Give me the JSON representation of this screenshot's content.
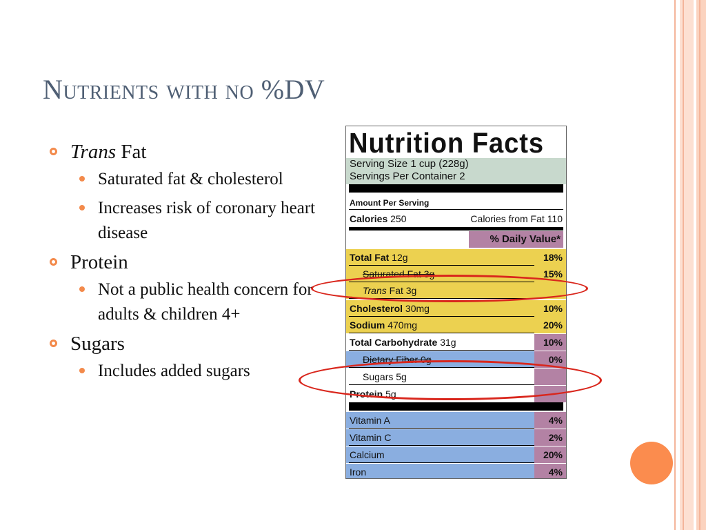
{
  "slide": {
    "title": "Nutrients with no %DV",
    "bullets": [
      {
        "label_italic": "Trans",
        "label_rest": " Fat",
        "subs": [
          "Saturated fat & cholesterol",
          "Increases risk of coronary heart disease"
        ]
      },
      {
        "label": "Protein",
        "subs": [
          "Not a public health concern for adults & children 4+"
        ]
      },
      {
        "label": "Sugars",
        "subs": [
          "Includes added sugars"
        ]
      }
    ]
  },
  "label": {
    "title": "Nutrition Facts",
    "serving_size": "Serving Size 1 cup (228g)",
    "servings_per_container": "Servings Per Container  2",
    "amount_per_serving": "Amount Per Serving",
    "calories_label": "Calories",
    "calories_value": " 250",
    "calories_from_fat": "Calories from Fat 110",
    "daily_value_header": "% Daily Value*",
    "rows": [
      {
        "name_bold": "Total Fat",
        "name_rest": " 12g",
        "pct": "18%"
      },
      {
        "name": "Saturated Fat 3g",
        "pct": "15%"
      },
      {
        "name_italic": "Trans",
        "name_rest": " Fat 3g",
        "pct": ""
      },
      {
        "name_bold": "Cholesterol",
        "name_rest": " 30mg",
        "pct": "10%"
      },
      {
        "name_bold": "Sodium",
        "name_rest": " 470mg",
        "pct": "20%"
      },
      {
        "name_bold": "Total Carbohydrate",
        "name_rest": " 31g",
        "pct": "10%"
      },
      {
        "name": "Dietary Fiber 0g",
        "pct": "0%"
      },
      {
        "name": "Sugars 5g",
        "pct": ""
      },
      {
        "name_bold": "Protein",
        "name_rest": " 5g",
        "pct": ""
      },
      {
        "name": "Vitamin A",
        "pct": "4%"
      },
      {
        "name": "Vitamin C",
        "pct": "2%"
      },
      {
        "name": "Calcium",
        "pct": "20%"
      },
      {
        "name": "Iron",
        "pct": "4%"
      }
    ]
  },
  "colors": {
    "title": "#4f5f74",
    "accent_orange": "#f38a4b",
    "highlight_ellipse": "#d9261c",
    "label_yellow": "#ecd150",
    "label_blue": "#8aaee0",
    "label_purple": "#b382a4",
    "serving_green": "#c8d9cd"
  }
}
